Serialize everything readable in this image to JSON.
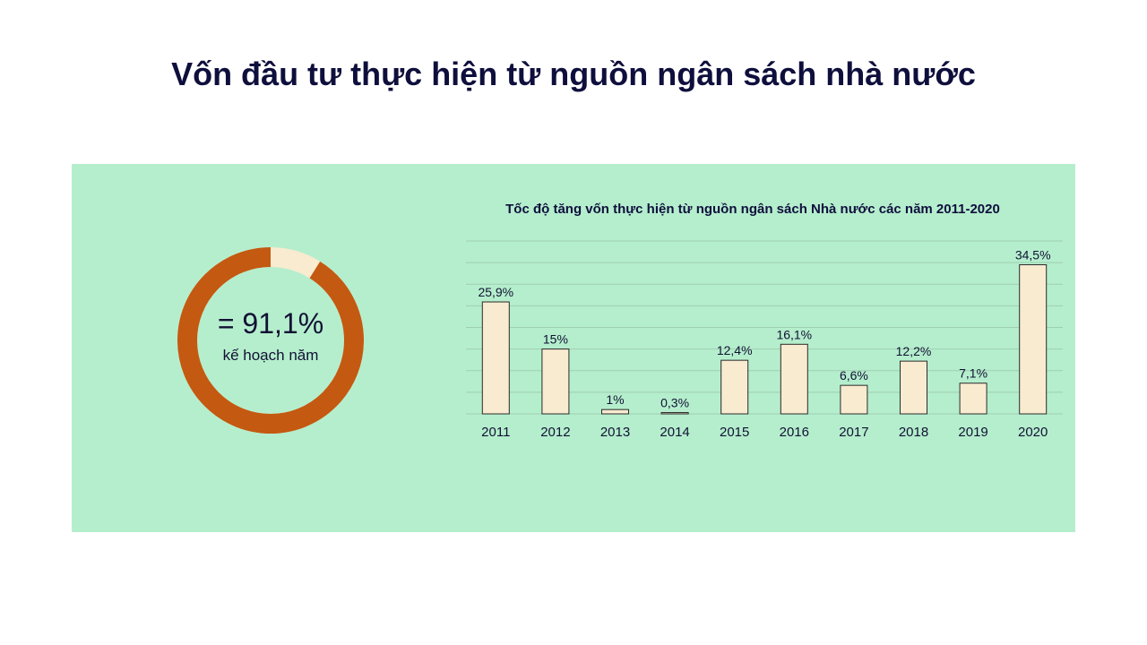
{
  "page": {
    "title": "Vốn đầu tư thực hiện từ nguồn ngân sách nhà nước"
  },
  "donut": {
    "value_label": "= 91,1%",
    "caption": "kế hoạch năm",
    "percent": 91.1,
    "colors": {
      "filled": "#c45911",
      "remaining": "#f8ebd0"
    }
  },
  "chart_data": {
    "type": "bar",
    "title": "Tốc độ tăng vốn thực hiện từ nguồn ngân sách Nhà nước các năm 2011-2020",
    "categories": [
      "2011",
      "2012",
      "2013",
      "2014",
      "2015",
      "2016",
      "2017",
      "2018",
      "2019",
      "2020"
    ],
    "values": [
      25.9,
      15,
      1,
      0.3,
      12.4,
      16.1,
      6.6,
      12.2,
      7.1,
      34.5
    ],
    "data_labels": [
      "25,9%",
      "15%",
      "1%",
      "0,3%",
      "12,4%",
      "16,1%",
      "6,6%",
      "12,2%",
      "7,1%",
      "34,5%"
    ],
    "ylim": [
      0,
      40
    ],
    "grid": true,
    "xlabel": "",
    "ylabel": "",
    "colors": {
      "bar": "#f8ebd0",
      "bar_border": "#2a2a2a",
      "grid": "#9fcfb1"
    }
  }
}
